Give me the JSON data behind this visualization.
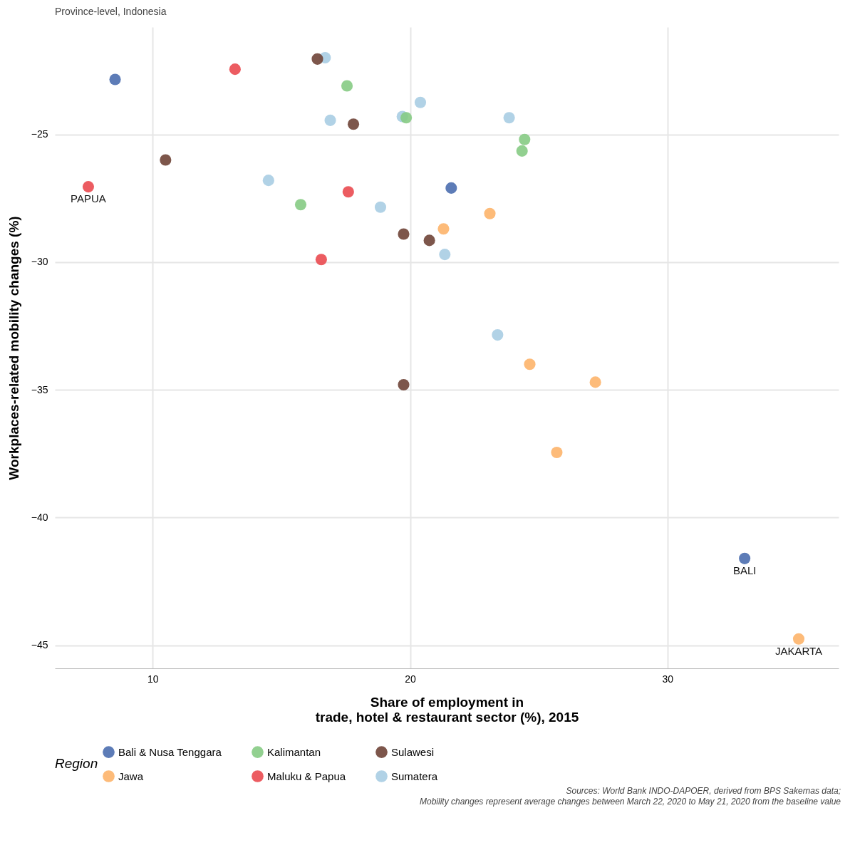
{
  "chart_data": {
    "type": "scatter",
    "title": "Province-level, Indonesia",
    "xlabel": "Share of employment in\ntrade, hotel & restaurant sector (%), 2015",
    "ylabel": "Workplaces-related mobility changes (%)",
    "legend_title": "Region",
    "legend": "bottom",
    "grid": true,
    "marker": "circle",
    "xlim": [
      6.2,
      36.65
    ],
    "xticks": [
      10,
      20,
      30
    ],
    "ylim": [
      -45.9,
      -20.8
    ],
    "yticks": [
      -45,
      -40,
      -35,
      -30,
      -25
    ],
    "series": [
      {
        "name": "Bali & Nusa Tenggara",
        "color": "#4b6eaf",
        "x": [
          8.54,
          21.6,
          33.0
        ],
        "values": [
          -22.85,
          -27.1,
          -41.6
        ]
      },
      {
        "name": "Kalimantan",
        "color": "#86cb84",
        "x": [
          17.55,
          19.85,
          24.45,
          24.35,
          15.75
        ],
        "values": [
          -23.1,
          -24.35,
          -25.2,
          -25.65,
          -27.75
        ]
      },
      {
        "name": "Sulawesi",
        "color": "#6f4437",
        "x": [
          16.4,
          17.8,
          10.5,
          19.75,
          20.75,
          19.75
        ],
        "values": [
          -22.05,
          -24.6,
          -26.0,
          -28.9,
          -29.15,
          -34.8
        ]
      },
      {
        "name": "Jawa",
        "color": "#fdb46a",
        "x": [
          23.1,
          21.3,
          24.65,
          27.2,
          25.7,
          35.1
        ],
        "values": [
          -28.1,
          -28.7,
          -34.0,
          -34.7,
          -37.45,
          -44.75
        ]
      },
      {
        "name": "Maluku & Papua",
        "color": "#ea4a50",
        "x": [
          13.2,
          7.5,
          17.6,
          16.55
        ],
        "values": [
          -22.45,
          -27.05,
          -27.25,
          -29.9
        ]
      },
      {
        "name": "Sumatera",
        "color": "#a9cde3",
        "x": [
          16.7,
          16.9,
          19.7,
          20.4,
          23.85,
          14.5,
          18.85,
          21.35,
          23.4
        ],
        "values": [
          -22.0,
          -24.45,
          -24.3,
          -23.75,
          -24.35,
          -26.8,
          -27.85,
          -29.7,
          -32.85
        ]
      }
    ],
    "annotations": [
      {
        "text": "PAPUA",
        "x": 7.5,
        "y": -27.05
      },
      {
        "text": "BALI",
        "x": 33.0,
        "y": -41.6
      },
      {
        "text": "JAKARTA",
        "x": 35.1,
        "y": -44.75
      },
      "Sources: World Bank INDO-DAPOER, derived from BPS Sakernas data;",
      "Mobility changes represent average changes between March 22, 2020 to May 21, 2020 from the baseline value"
    ]
  }
}
